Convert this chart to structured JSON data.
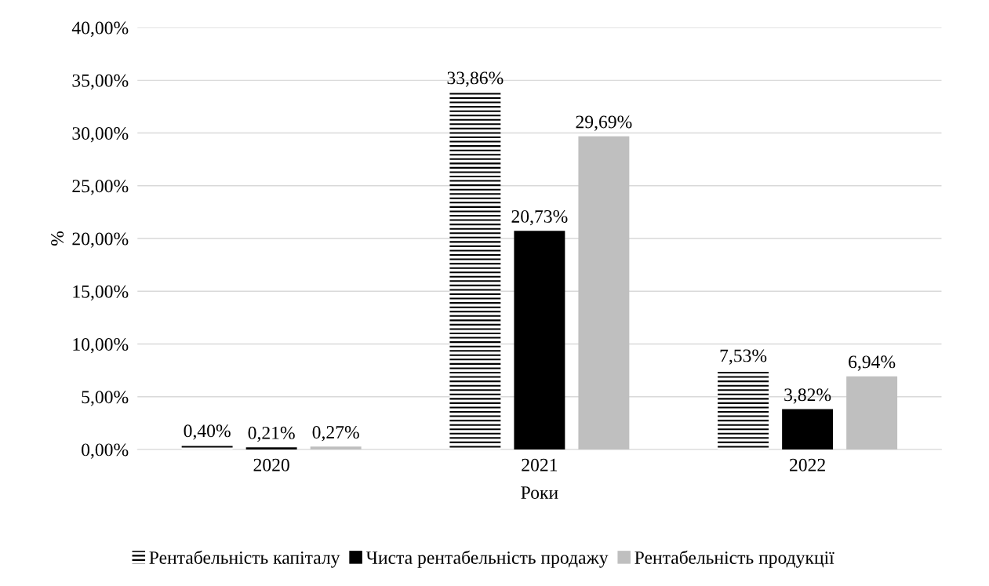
{
  "chart_data": {
    "type": "bar",
    "xlabel": "Роки",
    "ylabel": "%",
    "categories": [
      "2020",
      "2021",
      "2022"
    ],
    "series": [
      {
        "name": "Рентабельність капіталу",
        "color": "#000000",
        "values": [
          0.4,
          33.86,
          7.53
        ],
        "value_labels": [
          "0,40%",
          "33,86%",
          "7,53%"
        ]
      },
      {
        "name": "Чиста рентабельність продажу",
        "color": "#000000",
        "values": [
          0.21,
          20.73,
          3.82
        ],
        "value_labels": [
          "0,21%",
          "20,73%",
          "3,82%"
        ]
      },
      {
        "name": "Рентабельність продукції",
        "color": "#bfbfbf",
        "values": [
          0.27,
          29.69,
          6.94
        ],
        "value_labels": [
          "0,27%",
          "29,69%",
          "6,94%"
        ]
      }
    ],
    "ylim": [
      0,
      40
    ],
    "yticks": [
      {
        "value": 0,
        "label": "0,00%"
      },
      {
        "value": 5,
        "label": "5,00%"
      },
      {
        "value": 10,
        "label": "10,00%"
      },
      {
        "value": 15,
        "label": "15,00%"
      },
      {
        "value": 20,
        "label": "20,00%"
      },
      {
        "value": 25,
        "label": "25,00%"
      },
      {
        "value": 30,
        "label": "30,00%"
      },
      {
        "value": 35,
        "label": "35,00%"
      },
      {
        "value": 40,
        "label": "40,00%"
      }
    ],
    "grid": "y",
    "legend": "bottom"
  }
}
